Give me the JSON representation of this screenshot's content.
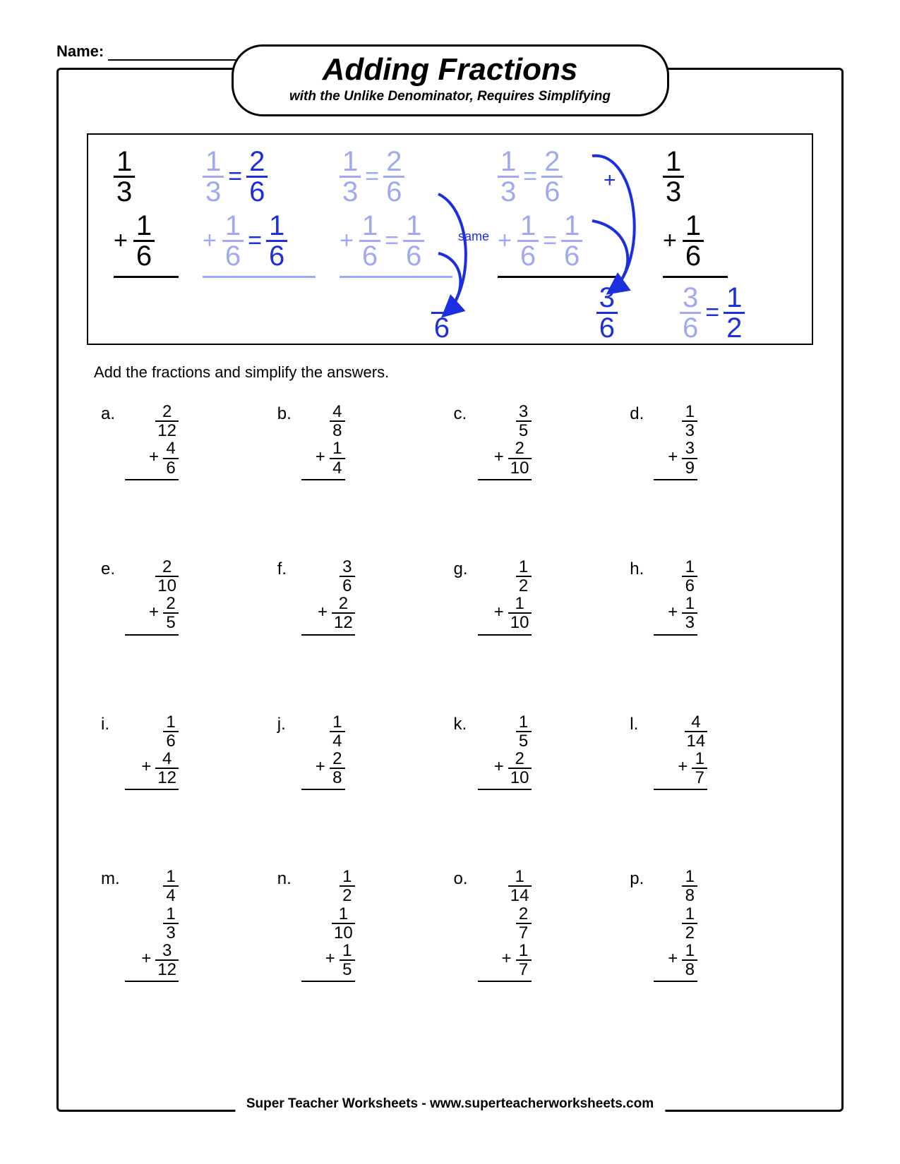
{
  "name_label": "Name:",
  "title": "Adding Fractions",
  "subtitle": "with the Unlike Denominator, Requires Simplifying",
  "instructions": "Add the fractions and simplify the answers.",
  "footer": "Super Teacher Worksheets - www.superteacherworksheets.com",
  "colors": {
    "text": "#000000",
    "border": "#000000",
    "example_faded": "#9fa8f2",
    "example_strong": "#1b2fe0",
    "background": "#ffffff"
  },
  "example": {
    "same_label": "same",
    "steps": [
      {
        "top": {
          "n": "1",
          "d": "3"
        },
        "bottom": {
          "n": "1",
          "d": "6"
        }
      },
      {
        "top_eq": [
          {
            "n": "1",
            "d": "3"
          },
          {
            "n": "2",
            "d": "6"
          }
        ],
        "bottom_eq": [
          {
            "n": "1",
            "d": "6"
          },
          {
            "n": "1",
            "d": "6"
          }
        ]
      },
      {
        "top_eq": [
          {
            "n": "1",
            "d": "3"
          },
          {
            "n": "2",
            "d": "6"
          }
        ],
        "bottom_eq": [
          {
            "n": "1",
            "d": "6"
          },
          {
            "n": "1",
            "d": "6"
          }
        ],
        "result_den": "6"
      },
      {
        "top_eq": [
          {
            "n": "1",
            "d": "3"
          },
          {
            "n": "2",
            "d": "6"
          }
        ],
        "bottom_eq": [
          {
            "n": "1",
            "d": "6"
          },
          {
            "n": "1",
            "d": "6"
          }
        ],
        "result": {
          "n": "3",
          "d": "6"
        }
      },
      {
        "top": {
          "n": "1",
          "d": "3"
        },
        "bottom": {
          "n": "1",
          "d": "6"
        },
        "result": {
          "n": "3",
          "d": "6"
        },
        "simplified": {
          "n": "1",
          "d": "2"
        }
      }
    ]
  },
  "problems": [
    {
      "label": "a.",
      "fractions": [
        {
          "n": "2",
          "d": "12"
        },
        {
          "n": "4",
          "d": "6"
        }
      ]
    },
    {
      "label": "b.",
      "fractions": [
        {
          "n": "4",
          "d": "8"
        },
        {
          "n": "1",
          "d": "4"
        }
      ]
    },
    {
      "label": "c.",
      "fractions": [
        {
          "n": "3",
          "d": "5"
        },
        {
          "n": "2",
          "d": "10"
        }
      ]
    },
    {
      "label": "d.",
      "fractions": [
        {
          "n": "1",
          "d": "3"
        },
        {
          "n": "3",
          "d": "9"
        }
      ]
    },
    {
      "label": "e.",
      "fractions": [
        {
          "n": "2",
          "d": "10"
        },
        {
          "n": "2",
          "d": "5"
        }
      ]
    },
    {
      "label": "f.",
      "fractions": [
        {
          "n": "3",
          "d": "6"
        },
        {
          "n": "2",
          "d": "12"
        }
      ]
    },
    {
      "label": "g.",
      "fractions": [
        {
          "n": "1",
          "d": "2"
        },
        {
          "n": "1",
          "d": "10"
        }
      ]
    },
    {
      "label": "h.",
      "fractions": [
        {
          "n": "1",
          "d": "6"
        },
        {
          "n": "1",
          "d": "3"
        }
      ]
    },
    {
      "label": "i.",
      "fractions": [
        {
          "n": "1",
          "d": "6"
        },
        {
          "n": "4",
          "d": "12"
        }
      ]
    },
    {
      "label": "j.",
      "fractions": [
        {
          "n": "1",
          "d": "4"
        },
        {
          "n": "2",
          "d": "8"
        }
      ]
    },
    {
      "label": "k.",
      "fractions": [
        {
          "n": "1",
          "d": "5"
        },
        {
          "n": "2",
          "d": "10"
        }
      ]
    },
    {
      "label": "l.",
      "fractions": [
        {
          "n": "4",
          "d": "14"
        },
        {
          "n": "1",
          "d": "7"
        }
      ]
    },
    {
      "label": "m.",
      "fractions": [
        {
          "n": "1",
          "d": "4"
        },
        {
          "n": "1",
          "d": "3"
        },
        {
          "n": "3",
          "d": "12"
        }
      ]
    },
    {
      "label": "n.",
      "fractions": [
        {
          "n": "1",
          "d": "2"
        },
        {
          "n": "1",
          "d": "10"
        },
        {
          "n": "1",
          "d": "5"
        }
      ]
    },
    {
      "label": "o.",
      "fractions": [
        {
          "n": "1",
          "d": "14"
        },
        {
          "n": "2",
          "d": "7"
        },
        {
          "n": "1",
          "d": "7"
        }
      ]
    },
    {
      "label": "p.",
      "fractions": [
        {
          "n": "1",
          "d": "8"
        },
        {
          "n": "1",
          "d": "2"
        },
        {
          "n": "1",
          "d": "8"
        }
      ]
    }
  ]
}
